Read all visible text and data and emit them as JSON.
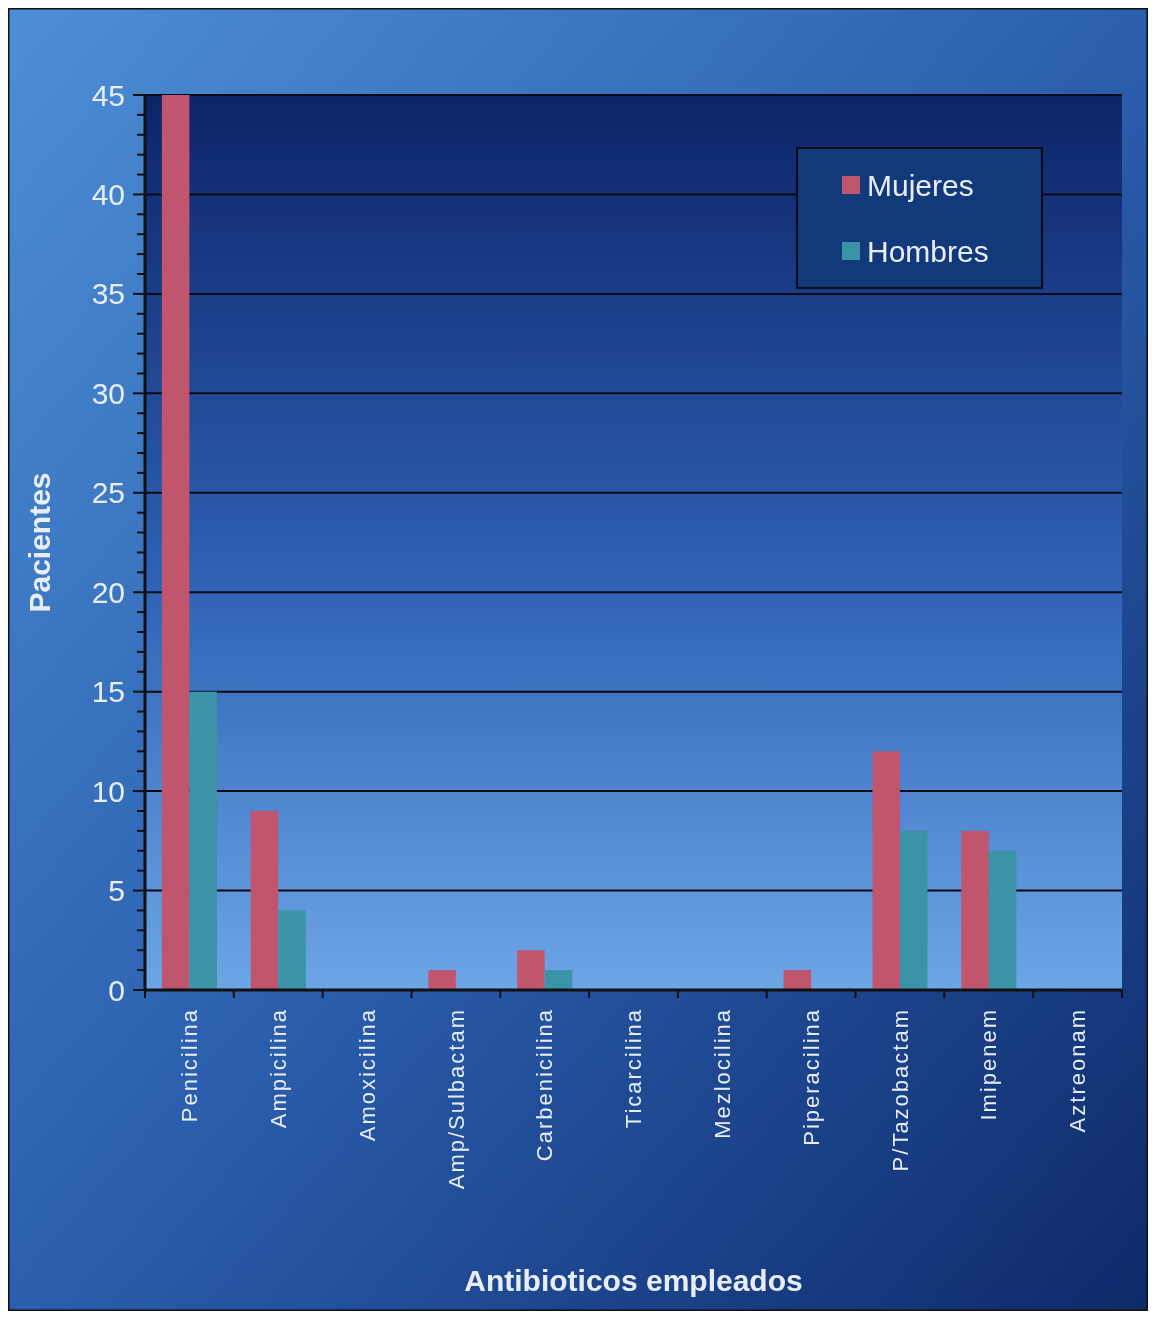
{
  "chart_data": {
    "type": "bar",
    "xlabel": "Antibioticos empleados",
    "ylabel": "Pacientes",
    "categories": [
      "Penicilina",
      "Ampicilina",
      "Amoxicilina",
      "Amp/Sulbactam",
      "Carbenicilina",
      "Ticarcilina",
      "Mezlocilina",
      "Piperacilina",
      "P/Tazobactam",
      "Imipenem",
      "Aztreonam"
    ],
    "series": [
      {
        "name": "Mujeres",
        "color": "#c0566e",
        "values": [
          45,
          9,
          0,
          1,
          2,
          0,
          0,
          1,
          12,
          8,
          0
        ]
      },
      {
        "name": "Hombres",
        "color": "#3b93a8",
        "values": [
          15,
          4,
          0,
          0,
          1,
          0,
          0,
          0,
          8,
          7,
          0
        ]
      }
    ],
    "ylim": [
      0,
      45
    ],
    "yticks": [
      0,
      {
        "value": 1,
        "label": null
      },
      {
        "value": 2,
        "label": null
      },
      {
        "value": 3,
        "label": null
      },
      {
        "value": 4,
        "label": null
      },
      5,
      {
        "value": 6,
        "label": null
      },
      {
        "value": 7,
        "label": null
      },
      {
        "value": 8,
        "label": null
      },
      {
        "value": 9,
        "label": null
      },
      10,
      {
        "value": 11,
        "label": null
      },
      {
        "value": 12,
        "label": null
      },
      {
        "value": 13,
        "label": null
      },
      {
        "value": 14,
        "label": null
      },
      15,
      {
        "value": 16,
        "label": null
      },
      {
        "value": 17,
        "label": null
      },
      {
        "value": 18,
        "label": null
      },
      {
        "value": 19,
        "label": null
      },
      20,
      {
        "value": 21,
        "label": null
      },
      {
        "value": 22,
        "label": null
      },
      {
        "value": 23,
        "label": null
      },
      {
        "value": 24,
        "label": null
      },
      25,
      {
        "value": 26,
        "label": null
      },
      {
        "value": 27,
        "label": null
      },
      {
        "value": 28,
        "label": null
      },
      {
        "value": 29,
        "label": null
      },
      30,
      {
        "value": 31,
        "label": null
      },
      {
        "value": 32,
        "label": null
      },
      {
        "value": 33,
        "label": null
      },
      {
        "value": 34,
        "label": null
      },
      35,
      {
        "value": 36,
        "label": null
      },
      {
        "value": 37,
        "label": null
      },
      {
        "value": 38,
        "label": null
      },
      {
        "value": 39,
        "label": null
      },
      40,
      {
        "value": 41,
        "label": null
      },
      {
        "value": 42,
        "label": null
      },
      {
        "value": 43,
        "label": null
      },
      {
        "value": 44,
        "label": null
      },
      45
    ],
    "grid": "y",
    "legend": "top right"
  }
}
